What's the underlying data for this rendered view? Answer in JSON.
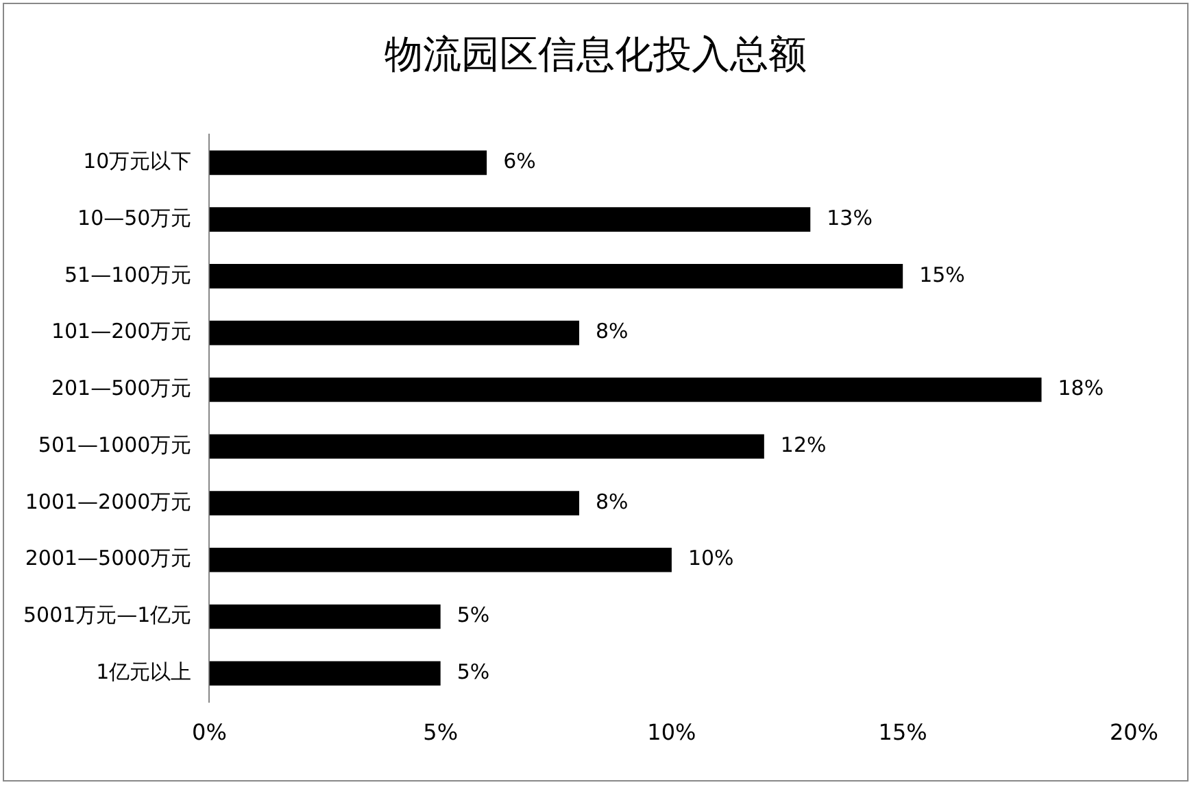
{
  "chart_data": {
    "type": "bar",
    "orientation": "horizontal",
    "title": "物流园区信息化投入总额",
    "categories": [
      "10万元以下",
      "10—50万元",
      "51—100万元",
      "101—200万元",
      "201—500万元",
      "501—1000万元",
      "1001—2000万元",
      "2001—5000万元",
      "5001万元—1亿元",
      "1亿元以上"
    ],
    "values": [
      6,
      13,
      15,
      8,
      18,
      12,
      8,
      10,
      5,
      5
    ],
    "value_labels": [
      "6%",
      "13%",
      "15%",
      "8%",
      "18%",
      "12%",
      "8%",
      "10%",
      "5%",
      "5%"
    ],
    "color": "#000000",
    "xlim": [
      0,
      20
    ],
    "xticks": [
      {
        "value": 0,
        "label": "0%"
      },
      {
        "value": 5,
        "label": "5%"
      },
      {
        "value": 10,
        "label": "10%"
      },
      {
        "value": 15,
        "label": "15%"
      },
      {
        "value": 20,
        "label": "20%"
      }
    ],
    "grid": false,
    "legend": false
  }
}
